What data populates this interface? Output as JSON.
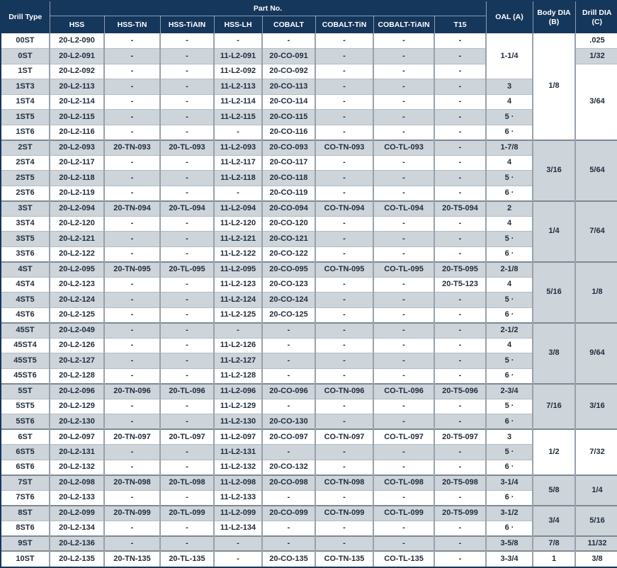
{
  "colors": {
    "header_bg": "#16375c",
    "header_text": "#ffffff",
    "row_stripe": "#cdd4da",
    "cell_text": "#212e3d",
    "grid_line": "#97a2ac",
    "outer_border": "#16375c"
  },
  "table": {
    "header": {
      "drill_type": "Drill Type",
      "part_no": "Part No.",
      "subcols": [
        "HSS",
        "HSS-TiN",
        "HSS-TiAIN",
        "HSS-LH",
        "COBALT",
        "COBALT-TiN",
        "COBALT-TiAIN",
        "T15"
      ],
      "oal": "OAL (A)",
      "body_dia": "Body DIA\n(B)",
      "drill_dia": "Drill DIA\n(C)"
    },
    "rows": [
      {
        "t": "00ST",
        "p": [
          "20-L2-090",
          "-",
          "-",
          "-",
          "-",
          "-",
          "-",
          "-"
        ],
        "oal": {
          "v": "1-1/4",
          "rs": 3
        },
        "body": {
          "v": "1/8",
          "rs": 7
        },
        "drill": {
          "v": ".025"
        }
      },
      {
        "t": "0ST",
        "p": [
          "20-L2-091",
          "-",
          "-",
          "11-L2-091",
          "20-CO-091",
          "-",
          "-",
          "-"
        ],
        "drill": {
          "v": "1/32"
        }
      },
      {
        "t": "1ST",
        "p": [
          "20-L2-092",
          "-",
          "-",
          "11-L2-092",
          "20-CO-092",
          "-",
          "-",
          "-"
        ],
        "drill": {
          "v": "3/64",
          "rs": 5
        }
      },
      {
        "t": "1ST3",
        "p": [
          "20-L2-113",
          "-",
          "-",
          "11-L2-113",
          "20-CO-113",
          "-",
          "-",
          "-"
        ],
        "oal": {
          "v": "3"
        }
      },
      {
        "t": "1ST4",
        "p": [
          "20-L2-114",
          "-",
          "-",
          "11-L2-114",
          "20-CO-114",
          "-",
          "-",
          "-"
        ],
        "oal": {
          "v": "4"
        }
      },
      {
        "t": "1ST5",
        "p": [
          "20-L2-115",
          "-",
          "-",
          "11-L2-115",
          "20-CO-115",
          "-",
          "-",
          "-"
        ],
        "oal": {
          "v": "5 ·"
        }
      },
      {
        "t": "1ST6",
        "p": [
          "20-L2-116",
          "-",
          "-",
          "-",
          "20-CO-116",
          "-",
          "-",
          "-"
        ],
        "oal": {
          "v": "6 ·"
        }
      },
      {
        "t": "2ST",
        "sec": true,
        "p": [
          "20-L2-093",
          "20-TN-093",
          "20-TL-093",
          "11-L2-093",
          "20-CO-093",
          "CO-TN-093",
          "CO-TL-093",
          "-"
        ],
        "oal": {
          "v": "1-7/8"
        },
        "body": {
          "v": "3/16",
          "rs": 4
        },
        "drill": {
          "v": "5/64",
          "rs": 4
        }
      },
      {
        "t": "2ST4",
        "p": [
          "20-L2-117",
          "-",
          "-",
          "11-L2-117",
          "20-CO-117",
          "-",
          "-",
          "-"
        ],
        "oal": {
          "v": "4"
        }
      },
      {
        "t": "2ST5",
        "p": [
          "20-L2-118",
          "-",
          "-",
          "11-L2-118",
          "20-CO-118",
          "-",
          "-",
          "-"
        ],
        "oal": {
          "v": "5 ·"
        }
      },
      {
        "t": "2ST6",
        "p": [
          "20-L2-119",
          "-",
          "-",
          "-",
          "20-CO-119",
          "-",
          "-",
          "-"
        ],
        "oal": {
          "v": "6 ·"
        }
      },
      {
        "t": "3ST",
        "sec": true,
        "p": [
          "20-L2-094",
          "20-TN-094",
          "20-TL-094",
          "11-L2-094",
          "20-CO-094",
          "CO-TN-094",
          "CO-TL-094",
          "20-T5-094"
        ],
        "oal": {
          "v": "2"
        },
        "body": {
          "v": "1/4",
          "rs": 4
        },
        "drill": {
          "v": "7/64",
          "rs": 4
        }
      },
      {
        "t": "3ST4",
        "p": [
          "20-L2-120",
          "-",
          "-",
          "11-L2-120",
          "20-CO-120",
          "-",
          "-",
          "-"
        ],
        "oal": {
          "v": "4"
        }
      },
      {
        "t": "3ST5",
        "p": [
          "20-L2-121",
          "-",
          "-",
          "11-L2-121",
          "20-CO-121",
          "-",
          "-",
          "-"
        ],
        "oal": {
          "v": "5 ·"
        }
      },
      {
        "t": "3ST6",
        "p": [
          "20-L2-122",
          "-",
          "-",
          "11-L2-122",
          "20-CO-122",
          "-",
          "-",
          "-"
        ],
        "oal": {
          "v": "6 ·"
        }
      },
      {
        "t": "4ST",
        "sec": true,
        "p": [
          "20-L2-095",
          "20-TN-095",
          "20-TL-095",
          "11-L2-095",
          "20-CO-095",
          "CO-TN-095",
          "CO-TL-095",
          "20-T5-095"
        ],
        "oal": {
          "v": "2-1/8"
        },
        "body": {
          "v": "5/16",
          "rs": 4
        },
        "drill": {
          "v": "1/8",
          "rs": 4
        }
      },
      {
        "t": "4ST4",
        "p": [
          "20-L2-123",
          "-",
          "-",
          "11-L2-123",
          "20-CO-123",
          "-",
          "-",
          "20-T5-123"
        ],
        "oal": {
          "v": "4"
        }
      },
      {
        "t": "4ST5",
        "p": [
          "20-L2-124",
          "-",
          "-",
          "11-L2-124",
          "20-CO-124",
          "-",
          "-",
          "-"
        ],
        "oal": {
          "v": "5 ·"
        }
      },
      {
        "t": "4ST6",
        "p": [
          "20-L2-125",
          "-",
          "-",
          "11-L2-125",
          "20-CO-125",
          "-",
          "-",
          "-"
        ],
        "oal": {
          "v": "6 ·"
        }
      },
      {
        "t": "45ST",
        "sec": true,
        "p": [
          "20-L2-049",
          "-",
          "-",
          "-",
          "-",
          "-",
          "-",
          "-"
        ],
        "oal": {
          "v": "2-1/2"
        },
        "body": {
          "v": "3/8",
          "rs": 4
        },
        "drill": {
          "v": "9/64",
          "rs": 4
        }
      },
      {
        "t": "45ST4",
        "p": [
          "20-L2-126",
          "-",
          "-",
          "11-L2-126",
          "-",
          "-",
          "-",
          "-"
        ],
        "oal": {
          "v": "4"
        }
      },
      {
        "t": "45ST5",
        "p": [
          "20-L2-127",
          "-",
          "-",
          "11-L2-127",
          "-",
          "-",
          "-",
          "-"
        ],
        "oal": {
          "v": "5 ·"
        }
      },
      {
        "t": "45ST6",
        "p": [
          "20-L2-128",
          "-",
          "-",
          "11-L2-128",
          "-",
          "-",
          "-",
          "-"
        ],
        "oal": {
          "v": "6 ·"
        }
      },
      {
        "t": "5ST",
        "sec": true,
        "p": [
          "20-L2-096",
          "20-TN-096",
          "20-TL-096",
          "11-L2-096",
          "20-CO-096",
          "CO-TN-096",
          "CO-TL-096",
          "20-T5-096"
        ],
        "oal": {
          "v": "2-3/4"
        },
        "body": {
          "v": "7/16",
          "rs": 3
        },
        "drill": {
          "v": "3/16",
          "rs": 3
        }
      },
      {
        "t": "5ST5",
        "p": [
          "20-L2-129",
          "-",
          "-",
          "11-L2-129",
          "-",
          "-",
          "-",
          "-"
        ],
        "oal": {
          "v": "5 ·"
        }
      },
      {
        "t": "5ST6",
        "p": [
          "20-L2-130",
          "-",
          "-",
          "11-L2-130",
          "20-CO-130",
          "-",
          "-",
          "-"
        ],
        "oal": {
          "v": "6 ·"
        }
      },
      {
        "t": "6ST",
        "sec": true,
        "p": [
          "20-L2-097",
          "20-TN-097",
          "20-TL-097",
          "11-L2-097",
          "20-CO-097",
          "CO-TN-097",
          "CO-TL-097",
          "20-T5-097"
        ],
        "oal": {
          "v": "3"
        },
        "body": {
          "v": "1/2",
          "rs": 3
        },
        "drill": {
          "v": "7/32",
          "rs": 3
        }
      },
      {
        "t": "6ST5",
        "p": [
          "20-L2-131",
          "-",
          "-",
          "11-L2-131",
          "-",
          "-",
          "-",
          "-"
        ],
        "oal": {
          "v": "5 ·"
        }
      },
      {
        "t": "6ST6",
        "p": [
          "20-L2-132",
          "-",
          "-",
          "11-L2-132",
          "20-CO-132",
          "-",
          "-",
          "-"
        ],
        "oal": {
          "v": "6 ·"
        }
      },
      {
        "t": "7ST",
        "sec": true,
        "p": [
          "20-L2-098",
          "20-TN-098",
          "20-TL-098",
          "11-L2-098",
          "20-CO-098",
          "CO-TN-098",
          "CO-TL-098",
          "20-T5-098"
        ],
        "oal": {
          "v": "3-1/4"
        },
        "body": {
          "v": "5/8",
          "rs": 2
        },
        "drill": {
          "v": "1/4",
          "rs": 2
        }
      },
      {
        "t": "7ST6",
        "p": [
          "20-L2-133",
          "-",
          "-",
          "11-L2-133",
          "-",
          "-",
          "-",
          "-"
        ],
        "oal": {
          "v": "6 ·"
        }
      },
      {
        "t": "8ST",
        "sec": true,
        "p": [
          "20-L2-099",
          "20-TN-099",
          "20-TL-099",
          "11-L2-099",
          "20-CO-099",
          "CO-TN-099",
          "CO-TL-099",
          "20-T5-099"
        ],
        "oal": {
          "v": "3-1/2"
        },
        "body": {
          "v": "3/4",
          "rs": 2
        },
        "drill": {
          "v": "5/16",
          "rs": 2
        }
      },
      {
        "t": "8ST6",
        "p": [
          "20-L2-134",
          "-",
          "-",
          "11-L2-134",
          "-",
          "-",
          "-",
          "-"
        ],
        "oal": {
          "v": "6 ·"
        }
      },
      {
        "t": "9ST",
        "sec": true,
        "p": [
          "20-L2-136",
          "-",
          "-",
          "-",
          "-",
          "-",
          "-",
          "-"
        ],
        "oal": {
          "v": "3-5/8"
        },
        "body": {
          "v": "7/8"
        },
        "drill": {
          "v": "11/32"
        }
      },
      {
        "t": "10ST",
        "sec": true,
        "p": [
          "20-L2-135",
          "20-TN-135",
          "20-TL-135",
          "-",
          "20-CO-135",
          "CO-TN-135",
          "CO-TL-135",
          "-"
        ],
        "oal": {
          "v": "3-3/4"
        },
        "body": {
          "v": "1"
        },
        "drill": {
          "v": "3/8"
        }
      }
    ]
  }
}
